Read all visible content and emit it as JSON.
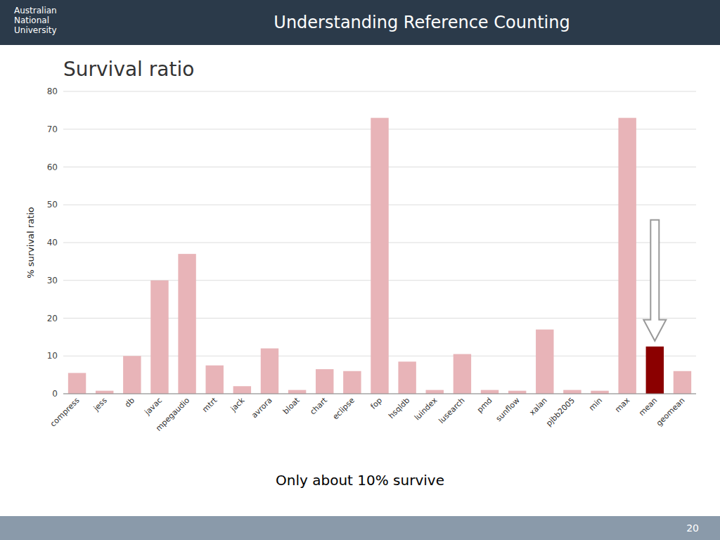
{
  "slide_title": "Understanding Reference Counting",
  "logo_text": "Australian\nNational\nUniversity",
  "page_number": "20",
  "chart_data": {
    "type": "bar",
    "title": "Survival ratio",
    "subtitle": "Only about 10% survive",
    "ylabel": "% survival ratio",
    "categories": [
      "compress",
      "jess",
      "db",
      "javac",
      "mpegaudio",
      "mtrt",
      "jack",
      "avrora",
      "bloat",
      "chart",
      "eclipse",
      "fop",
      "hsqldb",
      "luindex",
      "lusearch",
      "pmd",
      "sunflow",
      "xalan",
      "pjbb2005",
      "min",
      "max",
      "mean",
      "geomean"
    ],
    "values": [
      5.5,
      0.8,
      10.0,
      30.0,
      37.0,
      7.5,
      2.0,
      12.0,
      1.0,
      6.5,
      6.0,
      73.0,
      8.5,
      1.0,
      10.5,
      1.0,
      0.8,
      17.0,
      1.0,
      0.8,
      73.0,
      12.5,
      6.0
    ],
    "colors": [
      "#e8b4b8",
      "#e8b4b8",
      "#e8b4b8",
      "#e8b4b8",
      "#e8b4b8",
      "#e8b4b8",
      "#e8b4b8",
      "#e8b4b8",
      "#e8b4b8",
      "#e8b4b8",
      "#e8b4b8",
      "#e8b4b8",
      "#e8b4b8",
      "#e8b4b8",
      "#e8b4b8",
      "#e8b4b8",
      "#e8b4b8",
      "#e8b4b8",
      "#e8b4b8",
      "#e8b4b8",
      "#e8b4b8",
      "#8b0000",
      "#e8b4b8"
    ],
    "ylim": [
      0,
      80
    ],
    "yticks": [
      0,
      10,
      20,
      30,
      40,
      50,
      60,
      70,
      80
    ],
    "grid": true,
    "annotations": [
      {
        "x": "mean",
        "from": 46,
        "to": 14
      }
    ]
  }
}
